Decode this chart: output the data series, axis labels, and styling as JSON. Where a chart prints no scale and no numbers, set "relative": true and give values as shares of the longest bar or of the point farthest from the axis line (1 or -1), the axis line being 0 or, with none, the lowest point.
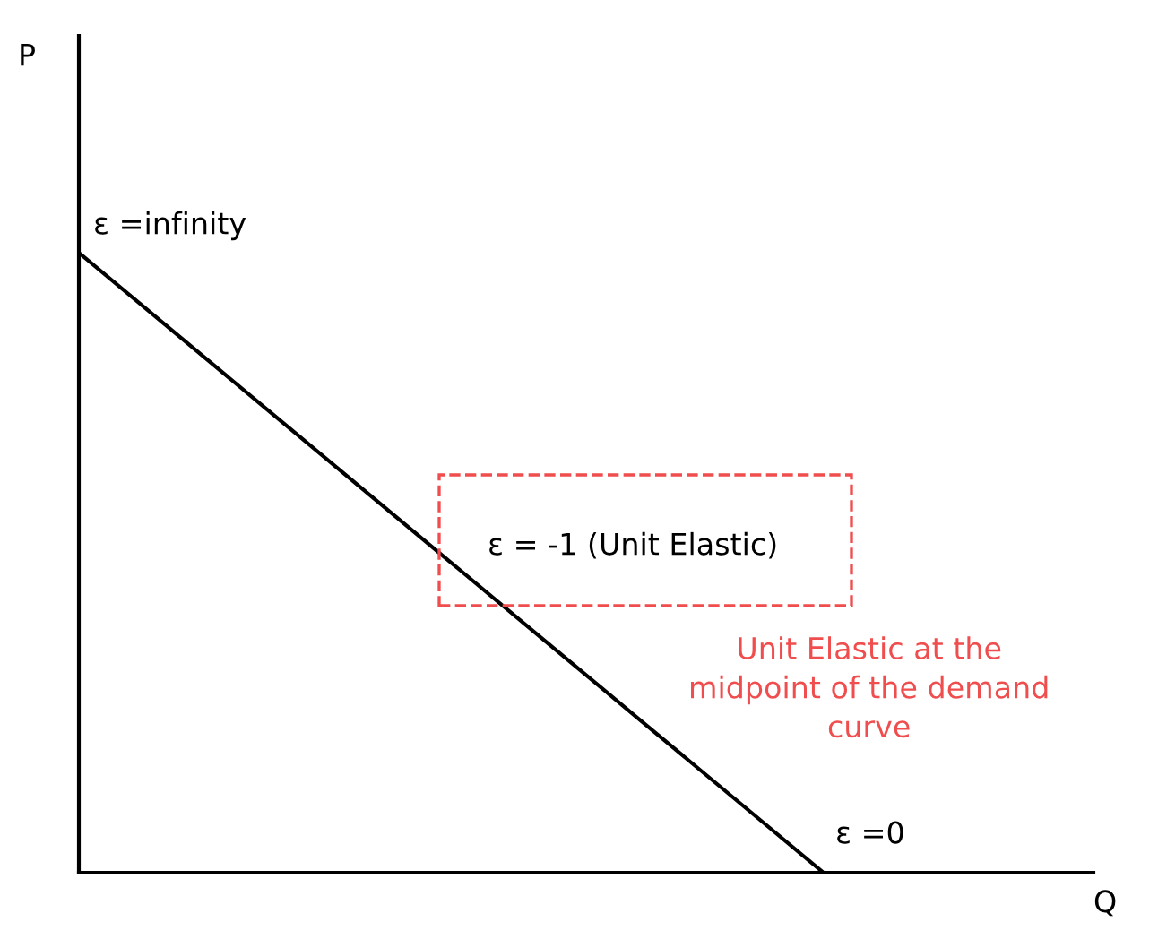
{
  "chart_data": {
    "type": "line",
    "relative": true,
    "xlabel": "Q",
    "categories": [
      null,
      null,
      null,
      null,
      null,
      null,
      null,
      null,
      null,
      null,
      null,
      null
    ],
    "series": [
      {
        "color": "#000000",
        "values": [
          1,
          0.875,
          0.75,
          0.625,
          0.5,
          0.375,
          0.25,
          0.125,
          0,
          null,
          null,
          null
        ]
      }
    ],
    "annotations": [
      "P",
      "ε =infinity",
      "ε = -1 (Unit Elastic)",
      "Unit Elastic at the\nmidpoint of the demand\ncurve",
      "ε =0"
    ],
    "marker": "none",
    "line_style": "solid",
    "legend": false
  }
}
